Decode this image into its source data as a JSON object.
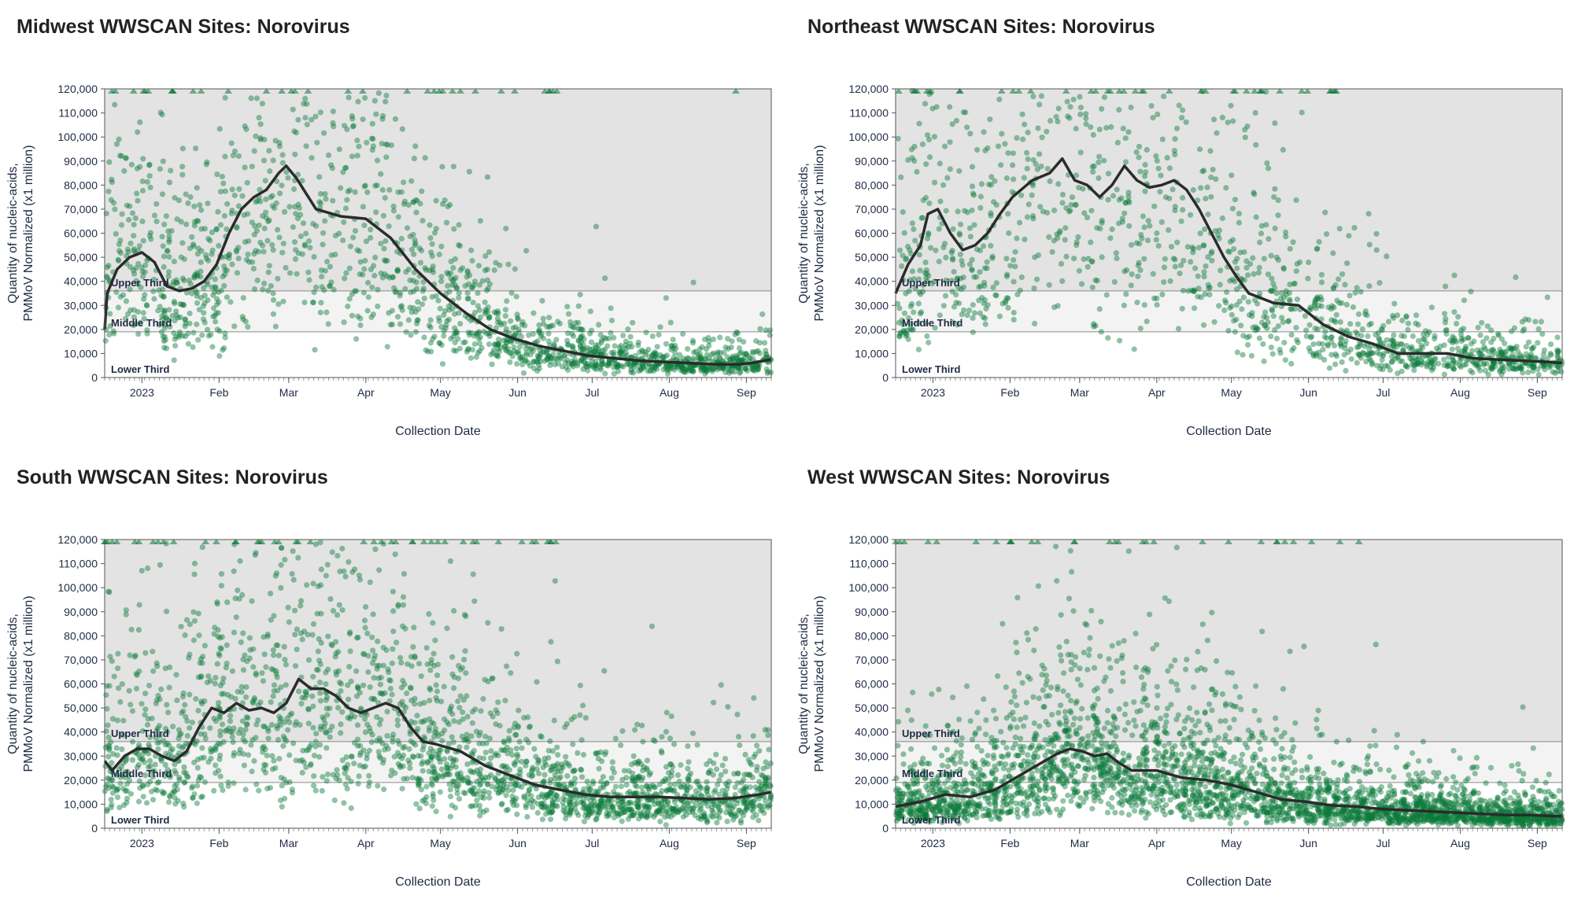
{
  "colors": {
    "accent": "#0a7a3a",
    "trend": "#2b2b2b",
    "upper_band": "#e3e3e3",
    "middle_band": "#f3f3f3",
    "lower_band": "#ffffff",
    "text": "#1f2a44"
  },
  "chart_data": [
    {
      "type": "scatter",
      "title": "Midwest WWSCAN Sites: Norovirus",
      "xlabel": "Collection Date",
      "ylabel_line1": "Quantity of nucleic-acids,",
      "ylabel_line2": "PMMoV Normalized (x1 million)",
      "ylim": [
        0,
        120000
      ],
      "xlim_days": [
        -15,
        253
      ],
      "y_ticks": [
        0,
        10000,
        20000,
        30000,
        40000,
        50000,
        60000,
        70000,
        80000,
        90000,
        100000,
        110000,
        120000
      ],
      "y_tick_labels": [
        "0",
        "10,000",
        "20,000",
        "30,000",
        "40,000",
        "50,000",
        "60,000",
        "70,000",
        "80,000",
        "90,000",
        "100,000",
        "110,000",
        "120,000"
      ],
      "x_ticks": [
        {
          "label": "2023",
          "day": 0
        },
        {
          "label": "Feb",
          "day": 31
        },
        {
          "label": "Mar",
          "day": 59
        },
        {
          "label": "Apr",
          "day": 90
        },
        {
          "label": "May",
          "day": 120
        },
        {
          "label": "Jun",
          "day": 151
        },
        {
          "label": "Jul",
          "day": 181
        },
        {
          "label": "Aug",
          "day": 212
        },
        {
          "label": "Sep",
          "day": 243
        }
      ],
      "bands": [
        {
          "name": "Upper Third",
          "from": 36000,
          "to": 120000,
          "color": "#e3e3e3"
        },
        {
          "name": "Middle Third",
          "from": 19000,
          "to": 36000,
          "color": "#f3f3f3"
        },
        {
          "name": "Lower Third",
          "from": 0,
          "to": 19000,
          "color": "#ffffff"
        }
      ],
      "trend": {
        "name": "Median",
        "days": [
          -15,
          -14,
          -10,
          -5,
          0,
          5,
          10,
          15,
          20,
          25,
          30,
          35,
          40,
          45,
          50,
          55,
          58,
          62,
          70,
          80,
          90,
          100,
          110,
          120,
          130,
          140,
          150,
          160,
          170,
          180,
          190,
          200,
          210,
          220,
          230,
          240,
          245,
          250,
          253
        ],
        "values": [
          20000,
          35000,
          45000,
          50000,
          52000,
          48000,
          38000,
          36000,
          37000,
          40000,
          47000,
          60000,
          70000,
          75000,
          78000,
          85000,
          88000,
          83000,
          70000,
          67000,
          66000,
          58000,
          45000,
          35000,
          27000,
          20000,
          16000,
          13000,
          11000,
          9000,
          8000,
          7000,
          6500,
          6000,
          5500,
          5500,
          6000,
          7000,
          7500
        ]
      },
      "scatter": {
        "n": 1800,
        "seed": 11,
        "points_above_range": 35,
        "sigma": 0.55,
        "minimum": 800
      }
    },
    {
      "type": "scatter",
      "title": "Northeast WWSCAN Sites: Norovirus",
      "xlabel": "Collection Date",
      "ylabel_line1": "Quantity of nucleic-acids,",
      "ylabel_line2": "PMMoV Normalized (x1 million)",
      "ylim": [
        0,
        120000
      ],
      "xlim_days": [
        -15,
        253
      ],
      "y_ticks": [
        0,
        10000,
        20000,
        30000,
        40000,
        50000,
        60000,
        70000,
        80000,
        90000,
        100000,
        110000,
        120000
      ],
      "y_tick_labels": [
        "0",
        "10,000",
        "20,000",
        "30,000",
        "40,000",
        "50,000",
        "60,000",
        "70,000",
        "80,000",
        "90,000",
        "100,000",
        "110,000",
        "120,000"
      ],
      "x_ticks": [
        {
          "label": "2023",
          "day": 0
        },
        {
          "label": "Feb",
          "day": 31
        },
        {
          "label": "Mar",
          "day": 59
        },
        {
          "label": "Apr",
          "day": 90
        },
        {
          "label": "May",
          "day": 120
        },
        {
          "label": "Jun",
          "day": 151
        },
        {
          "label": "Jul",
          "day": 181
        },
        {
          "label": "Aug",
          "day": 212
        },
        {
          "label": "Sep",
          "day": 243
        }
      ],
      "bands": [
        {
          "name": "Upper Third",
          "from": 36000,
          "to": 120000,
          "color": "#e3e3e3"
        },
        {
          "name": "Middle Third",
          "from": 19000,
          "to": 36000,
          "color": "#f3f3f3"
        },
        {
          "name": "Lower Third",
          "from": 0,
          "to": 19000,
          "color": "#ffffff"
        }
      ],
      "trend": {
        "name": "Median",
        "days": [
          -15,
          -10,
          -5,
          -2,
          2,
          7,
          12,
          17,
          22,
          27,
          32,
          40,
          47,
          52,
          57,
          62,
          67,
          72,
          77,
          82,
          87,
          92,
          97,
          102,
          107,
          112,
          117,
          122,
          127,
          137,
          147,
          157,
          167,
          177,
          187,
          197,
          207,
          217,
          227,
          237,
          247,
          253
        ],
        "values": [
          35000,
          47000,
          55000,
          68000,
          70000,
          60000,
          53000,
          55000,
          60000,
          68000,
          75000,
          82000,
          85000,
          91000,
          82000,
          80000,
          75000,
          80000,
          88000,
          82000,
          79000,
          80000,
          82000,
          78000,
          70000,
          60000,
          50000,
          42000,
          35000,
          31000,
          30000,
          22000,
          17000,
          14000,
          10000,
          10000,
          10000,
          8000,
          7500,
          7000,
          6500,
          6000
        ]
      },
      "scatter": {
        "n": 1500,
        "seed": 23,
        "points_above_range": 40,
        "sigma": 0.6,
        "minimum": 800
      }
    },
    {
      "type": "scatter",
      "title": "South WWSCAN Sites: Norovirus",
      "xlabel": "Collection Date",
      "ylabel_line1": "Quantity of nucleic-acids,",
      "ylabel_line2": "PMMoV Normalized (x1 million)",
      "ylim": [
        0,
        120000
      ],
      "xlim_days": [
        -15,
        253
      ],
      "y_ticks": [
        0,
        10000,
        20000,
        30000,
        40000,
        50000,
        60000,
        70000,
        80000,
        90000,
        100000,
        110000,
        120000
      ],
      "y_tick_labels": [
        "0",
        "10,000",
        "20,000",
        "30,000",
        "40,000",
        "50,000",
        "60,000",
        "70,000",
        "80,000",
        "90,000",
        "100,000",
        "110,000",
        "120,000"
      ],
      "x_ticks": [
        {
          "label": "2023",
          "day": 0
        },
        {
          "label": "Feb",
          "day": 31
        },
        {
          "label": "Mar",
          "day": 59
        },
        {
          "label": "Apr",
          "day": 90
        },
        {
          "label": "May",
          "day": 120
        },
        {
          "label": "Jun",
          "day": 151
        },
        {
          "label": "Jul",
          "day": 181
        },
        {
          "label": "Aug",
          "day": 212
        },
        {
          "label": "Sep",
          "day": 243
        }
      ],
      "bands": [
        {
          "name": "Upper Third",
          "from": 36000,
          "to": 120000,
          "color": "#e3e3e3"
        },
        {
          "name": "Middle Third",
          "from": 19000,
          "to": 36000,
          "color": "#f3f3f3"
        },
        {
          "name": "Lower Third",
          "from": 0,
          "to": 19000,
          "color": "#ffffff"
        }
      ],
      "trend": {
        "name": "Median",
        "days": [
          -15,
          -12,
          -7,
          -2,
          3,
          8,
          13,
          18,
          23,
          28,
          33,
          38,
          43,
          48,
          53,
          58,
          63,
          68,
          73,
          78,
          83,
          88,
          93,
          98,
          103,
          108,
          113,
          118,
          128,
          138,
          148,
          158,
          168,
          178,
          188,
          198,
          208,
          218,
          228,
          238,
          248,
          253
        ],
        "values": [
          28000,
          24000,
          30000,
          33000,
          33000,
          30000,
          28000,
          32000,
          42000,
          50000,
          48000,
          52000,
          49000,
          50000,
          48000,
          52000,
          62000,
          58000,
          58000,
          55000,
          50000,
          48000,
          50000,
          52000,
          50000,
          42000,
          36000,
          35000,
          32000,
          26000,
          22000,
          18000,
          16000,
          14000,
          13000,
          13000,
          13000,
          12500,
          12000,
          12500,
          14000,
          15000
        ]
      },
      "scatter": {
        "n": 2200,
        "seed": 37,
        "points_above_range": 45,
        "sigma": 0.6,
        "minimum": 800
      }
    },
    {
      "type": "scatter",
      "title": "West WWSCAN Sites: Norovirus",
      "xlabel": "Collection Date",
      "ylabel_line1": "Quantity of nucleic-acids,",
      "ylabel_line2": "PMMoV Normalized (x1 million)",
      "ylim": [
        0,
        120000
      ],
      "xlim_days": [
        -15,
        253
      ],
      "y_ticks": [
        0,
        10000,
        20000,
        30000,
        40000,
        50000,
        60000,
        70000,
        80000,
        90000,
        100000,
        110000,
        120000
      ],
      "y_tick_labels": [
        "0",
        "10,000",
        "20,000",
        "30,000",
        "40,000",
        "50,000",
        "60,000",
        "70,000",
        "80,000",
        "90,000",
        "100,000",
        "110,000",
        "120,000"
      ],
      "x_ticks": [
        {
          "label": "2023",
          "day": 0
        },
        {
          "label": "Feb",
          "day": 31
        },
        {
          "label": "Mar",
          "day": 59
        },
        {
          "label": "Apr",
          "day": 90
        },
        {
          "label": "May",
          "day": 120
        },
        {
          "label": "Jun",
          "day": 151
        },
        {
          "label": "Jul",
          "day": 181
        },
        {
          "label": "Aug",
          "day": 212
        },
        {
          "label": "Sep",
          "day": 243
        }
      ],
      "bands": [
        {
          "name": "Upper Third",
          "from": 36000,
          "to": 120000,
          "color": "#e3e3e3"
        },
        {
          "name": "Middle Third",
          "from": 19000,
          "to": 36000,
          "color": "#f3f3f3"
        },
        {
          "name": "Lower Third",
          "from": 0,
          "to": 19000,
          "color": "#ffffff"
        }
      ],
      "trend": {
        "name": "Median",
        "days": [
          -15,
          -5,
          5,
          15,
          25,
          35,
          45,
          50,
          55,
          60,
          65,
          70,
          75,
          80,
          90,
          100,
          110,
          120,
          130,
          140,
          150,
          160,
          170,
          180,
          190,
          200,
          210,
          220,
          230,
          240,
          250,
          253
        ],
        "values": [
          9000,
          11000,
          14000,
          13000,
          16000,
          22000,
          28000,
          31000,
          33000,
          32000,
          30000,
          31000,
          27000,
          24000,
          24000,
          21000,
          20000,
          18000,
          15000,
          12000,
          11000,
          9500,
          9000,
          8000,
          7500,
          7000,
          6500,
          6000,
          5500,
          5500,
          5000,
          5000
        ]
      },
      "scatter": {
        "n": 3200,
        "seed": 53,
        "points_above_range": 30,
        "sigma": 0.65,
        "minimum": 800
      }
    }
  ]
}
